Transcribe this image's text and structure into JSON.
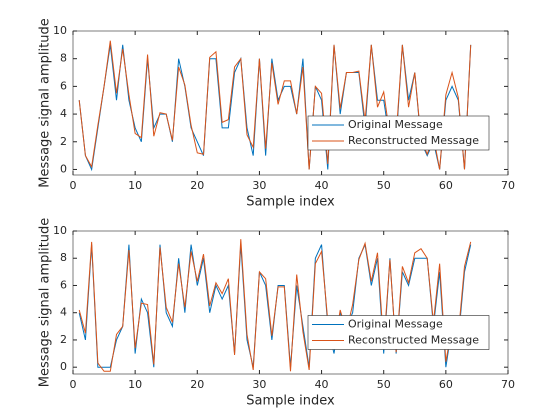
{
  "chart_data": [
    {
      "type": "line",
      "xlabel": "Sample index",
      "ylabel": "Message signal amplitude",
      "x": [
        1,
        2,
        3,
        4,
        5,
        6,
        7,
        8,
        9,
        10,
        11,
        12,
        13,
        14,
        15,
        16,
        17,
        18,
        19,
        20,
        21,
        22,
        23,
        24,
        25,
        26,
        27,
        28,
        29,
        30,
        31,
        32,
        33,
        34,
        35,
        36,
        37,
        38,
        39,
        40,
        41,
        42,
        43,
        44,
        45,
        46,
        47,
        48,
        49,
        50,
        51,
        52,
        53,
        54,
        55,
        56,
        57,
        58,
        59,
        60,
        61,
        62,
        63,
        64
      ],
      "series": [
        {
          "name": "Original Message",
          "color": "#0072bd",
          "values": [
            5,
            1,
            0,
            3,
            6,
            9,
            5,
            9,
            5,
            3,
            2,
            8,
            3,
            4,
            4,
            2,
            8,
            6,
            3,
            2,
            1,
            8,
            8,
            3,
            3,
            7,
            8,
            3,
            1,
            8,
            1,
            8,
            5,
            6,
            6,
            4,
            8,
            0,
            6,
            5,
            0,
            9,
            4,
            7,
            7,
            7,
            3,
            9,
            5,
            5,
            2,
            2,
            9,
            5,
            7,
            2,
            1,
            2,
            0,
            5,
            6,
            5,
            0,
            9
          ]
        },
        {
          "name": "Reconstructed Message",
          "color": "#d95319",
          "values": [
            5,
            1,
            0.2,
            3.2,
            6,
            9.3,
            5.5,
            8.7,
            5.4,
            2.6,
            2.3,
            8.3,
            2.4,
            4.1,
            4,
            2.1,
            7.4,
            6.1,
            3.2,
            1.2,
            1.1,
            8.1,
            8.5,
            3.4,
            3.6,
            7.4,
            8,
            2.5,
            1.6,
            8,
            1.5,
            7.7,
            4.7,
            6.4,
            6.4,
            4,
            7.4,
            0,
            6,
            5.5,
            0.4,
            9,
            4.4,
            7,
            7,
            7.1,
            3.5,
            9,
            4.5,
            5.6,
            2.4,
            2.4,
            9,
            4.5,
            7,
            2.2,
            1.1,
            2.4,
            0,
            5.4,
            7,
            5.2,
            0,
            9
          ]
        }
      ],
      "xlim": [
        0,
        70
      ],
      "xticks": [
        0,
        10,
        20,
        30,
        40,
        50,
        60,
        70
      ],
      "ylim": [
        -0.4,
        10
      ],
      "yticks": [
        0,
        2,
        4,
        6,
        8,
        10
      ],
      "legend": "east"
    },
    {
      "type": "line",
      "xlabel": "Sample index",
      "ylabel": "Message signal amplitude",
      "x": [
        1,
        2,
        3,
        4,
        5,
        6,
        7,
        8,
        9,
        10,
        11,
        12,
        13,
        14,
        15,
        16,
        17,
        18,
        19,
        20,
        21,
        22,
        23,
        24,
        25,
        26,
        27,
        28,
        29,
        30,
        31,
        32,
        33,
        34,
        35,
        36,
        37,
        38,
        39,
        40,
        41,
        42,
        43,
        44,
        45,
        46,
        47,
        48,
        49,
        50,
        51,
        52,
        53,
        54,
        55,
        56,
        57,
        58,
        59,
        60,
        61,
        62,
        63,
        64
      ],
      "series": [
        {
          "name": "Original Message",
          "color": "#0072bd",
          "values": [
            4,
            2,
            9,
            0,
            0,
            0,
            2,
            3,
            9,
            1,
            5,
            4,
            0,
            9,
            4,
            3,
            8,
            4,
            9,
            6,
            8,
            4,
            6,
            5,
            6,
            1,
            9,
            2,
            0,
            7,
            6,
            2,
            6,
            6,
            0,
            6,
            3,
            0,
            8,
            9,
            3,
            1,
            4,
            3,
            4,
            8,
            9,
            6,
            8,
            1,
            8,
            1,
            7,
            6,
            8,
            8,
            8,
            3,
            7,
            0,
            3,
            2,
            7,
            9
          ]
        },
        {
          "name": "Reconstructed Message",
          "color": "#d95319",
          "values": [
            4.2,
            2.5,
            9.2,
            0.3,
            -0.3,
            -0.3,
            2.4,
            3,
            8.6,
            1.4,
            4.7,
            4.6,
            0.2,
            8.8,
            4.4,
            3.3,
            7.6,
            4.4,
            8.5,
            6.3,
            8.3,
            4.5,
            6.2,
            5.4,
            6.5,
            0.9,
            9.4,
            2.4,
            -0.2,
            7,
            6.5,
            2.3,
            5.9,
            5.9,
            -0.3,
            6.8,
            2.6,
            -0.2,
            7.6,
            8.5,
            3.4,
            1.4,
            4.2,
            2.6,
            4.6,
            7.9,
            9.1,
            6.3,
            8.4,
            1.6,
            7.9,
            1.1,
            7.4,
            6.2,
            8.4,
            8.7,
            8,
            3.3,
            7.6,
            0.4,
            3,
            2.4,
            7.4,
            9.2
          ]
        }
      ],
      "xlim": [
        0,
        70
      ],
      "xticks": [
        0,
        10,
        20,
        30,
        40,
        50,
        60,
        70
      ],
      "ylim": [
        -0.5,
        10
      ],
      "yticks": [
        0,
        2,
        4,
        6,
        8,
        10
      ],
      "legend": "east"
    }
  ]
}
